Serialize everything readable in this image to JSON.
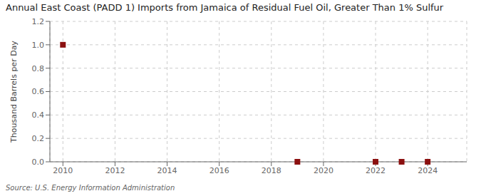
{
  "chart_data": {
    "type": "scatter",
    "title": "Annual East Coast (PADD 1) Imports from Jamaica of Residual Fuel Oil, Greater Than 1% Sulfur",
    "ylabel": "Thousand Barrels per Day",
    "source": "Source: U.S. Energy Information Administration",
    "x": [
      2010,
      2019,
      2022,
      2023,
      2024
    ],
    "values": [
      1.0,
      0.0,
      0.0,
      0.0,
      0.0
    ],
    "color": "#8b1010",
    "marker": "square",
    "xlim": [
      2009.5,
      2025.5
    ],
    "ylim": [
      0.0,
      1.2
    ],
    "xticks": [
      2010,
      2012,
      2014,
      2016,
      2018,
      2020,
      2022,
      2024
    ],
    "yticks": [
      {
        "value": 0,
        "label": "0.0"
      },
      0.2,
      0.4,
      0.6,
      0.8,
      {
        "value": 1,
        "label": "1.0"
      },
      1.2
    ],
    "grid": true
  }
}
